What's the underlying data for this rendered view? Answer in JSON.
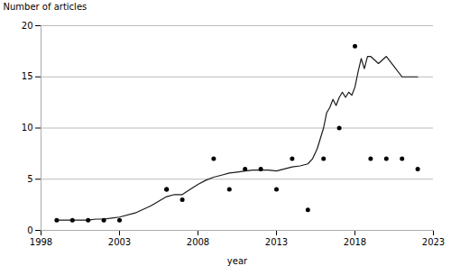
{
  "chart_data": {
    "type": "line",
    "xlabel": "year",
    "ylabel": "Number of articles",
    "xlim": [
      1998,
      2023
    ],
    "ylim": [
      0,
      20
    ],
    "xticks": [
      1998,
      2003,
      2008,
      2013,
      2018,
      2023
    ],
    "yticks": [
      0,
      5,
      10,
      15,
      20
    ],
    "grid": "y",
    "series": [
      {
        "type": "line",
        "color": "#1a1a1a",
        "x": [
          1999,
          1999.5,
          2000,
          2000.5,
          2001,
          2001.5,
          2002,
          2002.5,
          2003,
          2004,
          2005,
          2006,
          2006.5,
          2007,
          2007.5,
          2008,
          2008.5,
          2009,
          2009.5,
          2010,
          2010.5,
          2011,
          2011.5,
          2012,
          2012.5,
          2013,
          2013.5,
          2014,
          2014.5,
          2015,
          2015.3,
          2015.6,
          2016,
          2016.2,
          2016.4,
          2016.6,
          2016.8,
          2017,
          2017.2,
          2017.4,
          2017.6,
          2017.8,
          2018,
          2018.2,
          2018.4,
          2018.6,
          2018.8,
          2019,
          2019.5,
          2020,
          2020.5,
          2021,
          2022
        ],
        "values": [
          1.0,
          1.0,
          1.0,
          1.0,
          1.0,
          1.1,
          1.1,
          1.2,
          1.3,
          1.7,
          2.4,
          3.3,
          3.5,
          3.5,
          4.0,
          4.5,
          4.9,
          5.2,
          5.4,
          5.6,
          5.7,
          5.8,
          5.9,
          5.9,
          5.9,
          5.8,
          6.0,
          6.2,
          6.3,
          6.5,
          7.0,
          8.0,
          10.0,
          11.5,
          12.0,
          12.8,
          12.2,
          13.0,
          13.5,
          13.0,
          13.5,
          13.2,
          14.0,
          15.5,
          16.8,
          15.8,
          17.0,
          17.0,
          16.3,
          17.0,
          16.0,
          15.0,
          15.0
        ]
      },
      {
        "type": "scatter",
        "color": "#000000",
        "x": [
          1999,
          2000,
          2001,
          2002,
          2003,
          2006,
          2006,
          2007,
          2009,
          2010,
          2011,
          2012,
          2013,
          2014,
          2015,
          2016,
          2017,
          2018,
          2019,
          2020,
          2021,
          2022
        ],
        "values": [
          1,
          1,
          1,
          1,
          1,
          4,
          4,
          3,
          7,
          4,
          6,
          6,
          4,
          7,
          2,
          7,
          10,
          18,
          7,
          7,
          7,
          6
        ]
      }
    ]
  }
}
